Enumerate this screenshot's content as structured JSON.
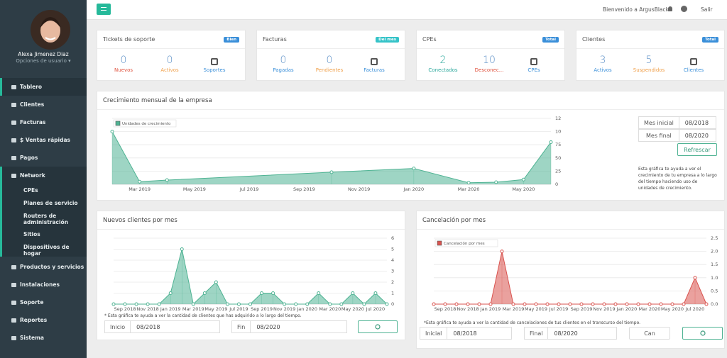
{
  "sidebar": {
    "user": {
      "name": "Alexa Jimenez Diaz",
      "options": "Opciones de usuario ▾"
    },
    "menu": [
      {
        "label": "Tablero"
      },
      {
        "label": "Clientes"
      },
      {
        "label": "Facturas"
      },
      {
        "label": "$ Ventas rápidas"
      },
      {
        "label": "Pagos"
      },
      {
        "label": "Network",
        "children": [
          "CPEs",
          "Planes de servicio",
          "Routers de administración",
          "Sitios",
          "Dispositivos de hogar"
        ]
      },
      {
        "label": "Productos y servicios"
      },
      {
        "label": "Instalaciones"
      },
      {
        "label": "Soporte"
      },
      {
        "label": "Reportes"
      },
      {
        "label": "Sistema"
      }
    ]
  },
  "topbar": {
    "welcome": "Bienvenido a ArgusBlack",
    "logout": "Salir"
  },
  "cards": [
    {
      "title": "Tickets de soporte",
      "badge": "Bien",
      "badge_color": "#3a8fd9",
      "stats": [
        {
          "value": 0,
          "label": "Nuevos",
          "color": "#e0533f"
        },
        {
          "value": 0,
          "label": "Activos",
          "color": "#f0a04b"
        }
      ],
      "link": "Soportes",
      "link_color": "#3a8fd9"
    },
    {
      "title": "Facturas",
      "badge": "Del mes",
      "badge_color": "#35c3c8",
      "stats": [
        {
          "value": 0,
          "label": "Pagadas",
          "color": "#3a8fd9"
        },
        {
          "value": 0,
          "label": "Pendientes",
          "color": "#f0a04b"
        }
      ],
      "link": "Facturas",
      "link_color": "#3a8fd9"
    },
    {
      "title": "CPEs",
      "badge": "Total",
      "badge_color": "#3a8fd9",
      "stats": [
        {
          "value": 2,
          "label": "Conectados",
          "color": "#26a69a"
        },
        {
          "value": 10,
          "label": "Desconec...",
          "color": "#e0533f"
        }
      ],
      "link": "CPEs",
      "link_color": "#3a8fd9"
    },
    {
      "title": "Clientes",
      "badge": "Total",
      "badge_color": "#3a8fd9",
      "stats": [
        {
          "value": 3,
          "label": "Activos",
          "color": "#3a8fd9"
        },
        {
          "value": 5,
          "label": "Suspendidos",
          "color": "#f0a04b"
        }
      ],
      "link": "Clientes",
      "link_color": "#3a8fd9"
    }
  ],
  "chart_data": [
    {
      "type": "area",
      "title": "Crecimiento mensual de la empresa",
      "legend": "Unidades de crecimiento",
      "x": [
        "Feb 2019",
        "Mar 2019",
        "Apr 2019",
        "Oct 2019",
        "Jan 2020",
        "Mar 2020",
        "Apr 2020",
        "May 2020",
        "Jun 2020"
      ],
      "values": [
        100,
        5,
        8,
        23,
        30,
        3,
        4,
        9,
        80
      ],
      "color": "#4fb393",
      "xlim": [
        "Feb 2019",
        "Jun 2020"
      ],
      "xticks": [
        "Mar 2019",
        "May 2019",
        "Jul 2019",
        "Sep 2019",
        "Nov 2019",
        "Jan 2020",
        "Mar 2020",
        "May 2020"
      ],
      "ylim": [
        0,
        125
      ],
      "yticks": [
        0,
        25,
        50,
        75,
        100,
        125
      ],
      "grid": true
    },
    {
      "type": "area",
      "title": "Nuevos clientes por mes",
      "note": "* Esta gráfica te ayuda a ver la cantidad de clientes que has adquirido a lo largo del tiempo.",
      "categories": [
        null,
        "Sep 2018",
        null,
        "Nov 2018",
        null,
        "Jan 2019",
        null,
        "Mar 2019",
        null,
        "May 2019",
        null,
        "Jul 2019",
        null,
        "Sep 2019",
        null,
        "Nov 2019",
        null,
        "Jan 2020",
        null,
        "Mar 2020",
        null,
        "May 2020",
        null,
        "Jul 2020",
        null
      ],
      "values": [
        0,
        0,
        0,
        0,
        0,
        1,
        5,
        0,
        1,
        2,
        0,
        0,
        0,
        1,
        1,
        0,
        0,
        0,
        1,
        0,
        0,
        1,
        0,
        1,
        0
      ],
      "color": "#4fb393",
      "ylim": [
        0,
        6
      ],
      "yticks": [
        0,
        1,
        2,
        3,
        4,
        5,
        6
      ],
      "grid": true
    },
    {
      "type": "area",
      "title": "Cancelación por mes",
      "legend": "Cancelación por mes",
      "note": "*Esta gráfica te ayuda a ver la cantidad de cancelaciones de tus clientes en el transcurso del tiempo.",
      "categories": [
        null,
        "Sep 2018",
        null,
        "Nov 2018",
        null,
        "Jan 2019",
        null,
        "Mar 2019",
        null,
        "May 2019",
        null,
        "Jul 2019",
        null,
        "Sep 2019",
        null,
        "Nov 2019",
        null,
        "Jan 2020",
        null,
        "Mar 2020",
        null,
        "May 2020",
        null,
        "Jul 2020",
        null
      ],
      "values": [
        0,
        0,
        0,
        0,
        0,
        0,
        2,
        0,
        0,
        0,
        0,
        0,
        0,
        0,
        0,
        0,
        0,
        0,
        0,
        0,
        0,
        0,
        0,
        1,
        0
      ],
      "color": "#d9534f",
      "ylim": [
        0,
        2.5
      ],
      "yticks": [
        {
          "value": 0,
          "label": "0.0"
        },
        {
          "value": 0.5,
          "label": "0.5"
        },
        {
          "value": 1,
          "label": "1.0"
        },
        {
          "value": 1.5,
          "label": "1.5"
        },
        {
          "value": 2,
          "label": "2.0"
        },
        {
          "value": 2.5,
          "label": "2.5"
        }
      ],
      "grid": true
    }
  ],
  "panels": [
    {
      "start_label": "Mes inicial",
      "start": "08/2018",
      "end_label": "Mes final",
      "end": "08/2020",
      "button": "Refrescar",
      "description": "Esta gráfica te ayuda a ver el crecimiento de tu empresa a lo largo del tiempo haciendo uso de unidades de crecimiento."
    },
    {
      "start_label": "Inicio",
      "start": "08/2018",
      "end_label": "Fin",
      "end": "08/2020"
    },
    {
      "start_label": "Inicial",
      "start": "08/2018",
      "end_label": "Final",
      "end": "08/2020",
      "button": "Can"
    }
  ]
}
